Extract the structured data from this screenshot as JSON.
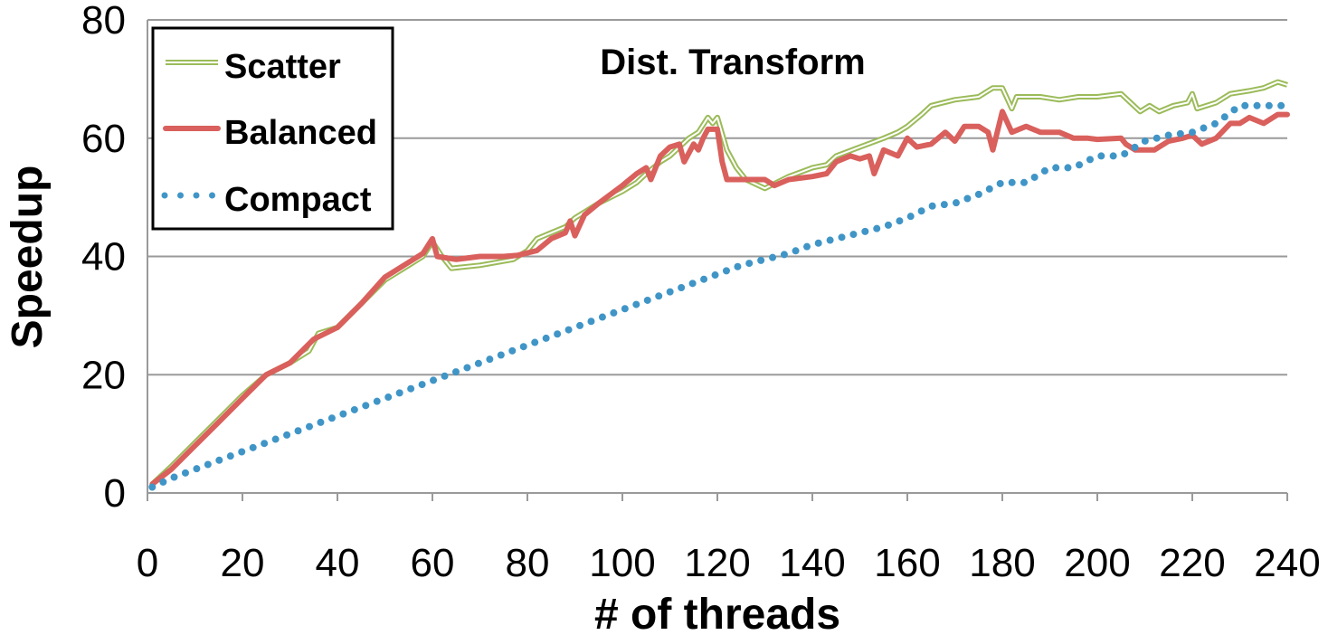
{
  "chart_data": {
    "type": "line",
    "title": "Dist. Transform",
    "xlabel": "# of threads",
    "ylabel": "Speedup",
    "xlim": [
      0,
      240
    ],
    "ylim": [
      0,
      80
    ],
    "xticks": [
      0,
      20,
      40,
      60,
      80,
      100,
      120,
      140,
      160,
      180,
      200,
      220,
      240
    ],
    "yticks": [
      0,
      20,
      40,
      60,
      80
    ],
    "grid": "horizontal",
    "legend_position": "top-left",
    "colors": {
      "Scatter": "#9bbb59",
      "Balanced": "#d9605c",
      "Compact": "#4095c7"
    },
    "series": [
      {
        "name": "Scatter",
        "style": "double-line",
        "points": [
          [
            1,
            1.5
          ],
          [
            5,
            4.5
          ],
          [
            10,
            8.5
          ],
          [
            15,
            12.5
          ],
          [
            20,
            16.5
          ],
          [
            25,
            20
          ],
          [
            30,
            22
          ],
          [
            34,
            24
          ],
          [
            36,
            27
          ],
          [
            40,
            28
          ],
          [
            45,
            32
          ],
          [
            50,
            36
          ],
          [
            55,
            38.5
          ],
          [
            58,
            40
          ],
          [
            60,
            42.5
          ],
          [
            62,
            40
          ],
          [
            64,
            38
          ],
          [
            70,
            38.5
          ],
          [
            77,
            39.5
          ],
          [
            80,
            41
          ],
          [
            82,
            43
          ],
          [
            85,
            44
          ],
          [
            88,
            45
          ],
          [
            90,
            46.5
          ],
          [
            95,
            49
          ],
          [
            100,
            51
          ],
          [
            103,
            52.5
          ],
          [
            105,
            54
          ],
          [
            108,
            56
          ],
          [
            110,
            57
          ],
          [
            112,
            58.5
          ],
          [
            114,
            60
          ],
          [
            116,
            61
          ],
          [
            118,
            63.5
          ],
          [
            119,
            62.5
          ],
          [
            120,
            63.5
          ],
          [
            122,
            58
          ],
          [
            124,
            55
          ],
          [
            126,
            53
          ],
          [
            130,
            51.5
          ],
          [
            135,
            53.5
          ],
          [
            140,
            55
          ],
          [
            143,
            55.5
          ],
          [
            145,
            57
          ],
          [
            150,
            58.5
          ],
          [
            155,
            60
          ],
          [
            158,
            61
          ],
          [
            160,
            62
          ],
          [
            163,
            64
          ],
          [
            165,
            65.5
          ],
          [
            170,
            66.5
          ],
          [
            175,
            67
          ],
          [
            178,
            68.5
          ],
          [
            180,
            68.5
          ],
          [
            182,
            65
          ],
          [
            183,
            67
          ],
          [
            188,
            67
          ],
          [
            192,
            66.5
          ],
          [
            196,
            67
          ],
          [
            200,
            67
          ],
          [
            205,
            67.5
          ],
          [
            207,
            66
          ],
          [
            209,
            64.5
          ],
          [
            211,
            65.5
          ],
          [
            213,
            64.5
          ],
          [
            216,
            65.5
          ],
          [
            219,
            66
          ],
          [
            220,
            67.5
          ],
          [
            221,
            65
          ],
          [
            225,
            66
          ],
          [
            228,
            67.5
          ],
          [
            232,
            68
          ],
          [
            235,
            68.5
          ],
          [
            238,
            69.5
          ],
          [
            240,
            69
          ]
        ]
      },
      {
        "name": "Balanced",
        "style": "solid",
        "points": [
          [
            1,
            1.5
          ],
          [
            5,
            4
          ],
          [
            10,
            8
          ],
          [
            15,
            12
          ],
          [
            20,
            16
          ],
          [
            25,
            20
          ],
          [
            30,
            22
          ],
          [
            35,
            26
          ],
          [
            40,
            28
          ],
          [
            45,
            32
          ],
          [
            50,
            36.5
          ],
          [
            55,
            39
          ],
          [
            58,
            40.5
          ],
          [
            60,
            43
          ],
          [
            61,
            40
          ],
          [
            65,
            39.5
          ],
          [
            70,
            40
          ],
          [
            75,
            40
          ],
          [
            78,
            40.2
          ],
          [
            82,
            41
          ],
          [
            85,
            43
          ],
          [
            88,
            44
          ],
          [
            89,
            46
          ],
          [
            90,
            43.5
          ],
          [
            92,
            47
          ],
          [
            95,
            49
          ],
          [
            100,
            52
          ],
          [
            103,
            54
          ],
          [
            105,
            55
          ],
          [
            106,
            53
          ],
          [
            108,
            57
          ],
          [
            110,
            58.5
          ],
          [
            112,
            59
          ],
          [
            113,
            56
          ],
          [
            115,
            59
          ],
          [
            116,
            58
          ],
          [
            117,
            60
          ],
          [
            118,
            61.5
          ],
          [
            120,
            61.5
          ],
          [
            121,
            56
          ],
          [
            122,
            53
          ],
          [
            125,
            53
          ],
          [
            130,
            53
          ],
          [
            132,
            52
          ],
          [
            135,
            53
          ],
          [
            140,
            53.5
          ],
          [
            143,
            54
          ],
          [
            145,
            56
          ],
          [
            148,
            57
          ],
          [
            150,
            56.5
          ],
          [
            152,
            57
          ],
          [
            153,
            54
          ],
          [
            155,
            58
          ],
          [
            158,
            57
          ],
          [
            160,
            60
          ],
          [
            162,
            58.5
          ],
          [
            165,
            59
          ],
          [
            168,
            61
          ],
          [
            170,
            59.5
          ],
          [
            172,
            62
          ],
          [
            175,
            62
          ],
          [
            177,
            61
          ],
          [
            178,
            58
          ],
          [
            180,
            64.5
          ],
          [
            182,
            61
          ],
          [
            185,
            62
          ],
          [
            188,
            61
          ],
          [
            192,
            61
          ],
          [
            195,
            60
          ],
          [
            198,
            60
          ],
          [
            200,
            59.8
          ],
          [
            205,
            60
          ],
          [
            206,
            59
          ],
          [
            208,
            58
          ],
          [
            212,
            58
          ],
          [
            215,
            59.5
          ],
          [
            218,
            60
          ],
          [
            220,
            60.5
          ],
          [
            222,
            59
          ],
          [
            225,
            60
          ],
          [
            228,
            62.5
          ],
          [
            230,
            62.5
          ],
          [
            232,
            63.5
          ],
          [
            235,
            62.5
          ],
          [
            238,
            64
          ],
          [
            240,
            64
          ]
        ]
      },
      {
        "name": "Compact",
        "style": "dotted",
        "points": [
          [
            1,
            1
          ],
          [
            5,
            2.5
          ],
          [
            10,
            4
          ],
          [
            15,
            5.5
          ],
          [
            20,
            7
          ],
          [
            25,
            8.5
          ],
          [
            30,
            10
          ],
          [
            35,
            11.5
          ],
          [
            40,
            13
          ],
          [
            45,
            14.5
          ],
          [
            50,
            16
          ],
          [
            55,
            17.5
          ],
          [
            60,
            19
          ],
          [
            65,
            20.5
          ],
          [
            70,
            22
          ],
          [
            75,
            23.5
          ],
          [
            80,
            25
          ],
          [
            85,
            26.5
          ],
          [
            90,
            28
          ],
          [
            95,
            29.5
          ],
          [
            100,
            31
          ],
          [
            105,
            32.5
          ],
          [
            110,
            34
          ],
          [
            115,
            35.5
          ],
          [
            120,
            37
          ],
          [
            125,
            38.5
          ],
          [
            130,
            39.5
          ],
          [
            135,
            40.5
          ],
          [
            140,
            42
          ],
          [
            145,
            43
          ],
          [
            150,
            44
          ],
          [
            155,
            45
          ],
          [
            160,
            46.5
          ],
          [
            165,
            48.5
          ],
          [
            170,
            49
          ],
          [
            175,
            50.5
          ],
          [
            180,
            52.5
          ],
          [
            185,
            52.5
          ],
          [
            190,
            55
          ],
          [
            195,
            55
          ],
          [
            200,
            57
          ],
          [
            205,
            57
          ],
          [
            210,
            59.5
          ],
          [
            215,
            60.5
          ],
          [
            220,
            61
          ],
          [
            225,
            62.5
          ],
          [
            230,
            65.5
          ],
          [
            235,
            65.5
          ],
          [
            240,
            65.5
          ]
        ]
      }
    ]
  }
}
